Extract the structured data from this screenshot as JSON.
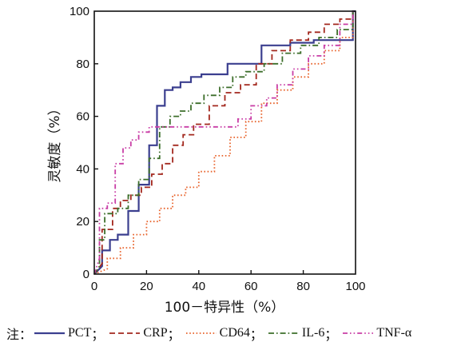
{
  "chart_data": {
    "type": "line",
    "xlabel": "100－特异性（%）",
    "ylabel": "灵敏度（%）",
    "xlim": [
      0,
      100
    ],
    "ylim": [
      0,
      100
    ],
    "x_ticks": [
      "0",
      "20",
      "40",
      "60",
      "80",
      "100"
    ],
    "y_ticks": [
      "0",
      "20",
      "40",
      "60",
      "80",
      "100"
    ],
    "grid": false,
    "legend_position": "bottom",
    "legend_prefix": "注：",
    "legend_separator": "；",
    "series": [
      {
        "name": "PCT",
        "color": "#3b3f8f",
        "style": "solid",
        "x": [
          0,
          3,
          3,
          6,
          6,
          9,
          9,
          13,
          13,
          17,
          17,
          21,
          21,
          24,
          24,
          27,
          27,
          30,
          30,
          33,
          33,
          37,
          37,
          41,
          41,
          45,
          45,
          51,
          51,
          56,
          56,
          64,
          64,
          75,
          75,
          84,
          84,
          95,
          95,
          99,
          99,
          100
        ],
        "y": [
          0,
          3,
          9,
          9,
          13,
          13,
          15,
          15,
          24,
          24,
          34,
          34,
          49,
          49,
          64,
          64,
          70,
          70,
          71,
          71,
          73,
          73,
          75,
          75,
          76,
          76,
          76,
          76,
          80,
          80,
          80,
          80,
          87,
          87,
          88,
          88,
          89,
          89,
          89,
          89,
          100,
          100
        ]
      },
      {
        "name": "CRP",
        "color": "#a3281e",
        "style": "dashed",
        "x": [
          0,
          3,
          3,
          7,
          7,
          10,
          10,
          14,
          14,
          18,
          18,
          22,
          22,
          26,
          26,
          30,
          30,
          34,
          34,
          38,
          38,
          44,
          44,
          50,
          50,
          56,
          56,
          62,
          62,
          68,
          68,
          75,
          75,
          82,
          82,
          88,
          88,
          94,
          94,
          99,
          99,
          100
        ],
        "y": [
          0,
          4,
          17,
          17,
          25,
          25,
          28,
          28,
          30,
          30,
          33,
          33,
          38,
          38,
          42,
          42,
          49,
          49,
          53,
          53,
          57,
          57,
          64,
          64,
          69,
          69,
          72,
          72,
          80,
          80,
          85,
          85,
          89,
          89,
          92,
          92,
          95,
          95,
          97,
          97,
          100,
          100
        ]
      },
      {
        "name": "CD64",
        "color": "#e8622a",
        "style": "dotted",
        "x": [
          0,
          5,
          5,
          10,
          10,
          15,
          15,
          20,
          20,
          25,
          25,
          30,
          30,
          35,
          35,
          40,
          40,
          46,
          46,
          52,
          52,
          58,
          58,
          64,
          64,
          70,
          70,
          76,
          76,
          82,
          82,
          88,
          88,
          94,
          94,
          99,
          99,
          100
        ],
        "y": [
          0,
          2,
          6,
          6,
          10,
          10,
          15,
          15,
          20,
          20,
          25,
          25,
          30,
          30,
          33,
          33,
          39,
          39,
          45,
          45,
          52,
          52,
          58,
          58,
          65,
          65,
          70,
          70,
          75,
          75,
          80,
          80,
          85,
          85,
          90,
          90,
          100,
          100
        ]
      },
      {
        "name": "IL-6",
        "color": "#3c6e2a",
        "style": "dashdot",
        "x": [
          0,
          2,
          2,
          4,
          4,
          9,
          9,
          13,
          13,
          17,
          17,
          21,
          21,
          25,
          25,
          29,
          29,
          33,
          33,
          37,
          37,
          42,
          42,
          48,
          48,
          53,
          53,
          58,
          58,
          65,
          65,
          72,
          72,
          79,
          79,
          86,
          86,
          93,
          93,
          99,
          99,
          100
        ],
        "y": [
          0,
          3,
          13,
          13,
          23,
          23,
          25,
          25,
          30,
          30,
          36,
          36,
          44,
          44,
          56,
          56,
          60,
          60,
          62,
          62,
          65,
          65,
          68,
          68,
          71,
          71,
          75,
          75,
          77,
          77,
          80,
          80,
          84,
          84,
          87,
          87,
          90,
          90,
          93,
          93,
          100,
          100
        ]
      },
      {
        "name": "TNF-α",
        "color": "#c93ea6",
        "style": "dashdotdot",
        "x": [
          0,
          2,
          2,
          5,
          5,
          8,
          8,
          11,
          11,
          14,
          14,
          17,
          17,
          21,
          21,
          28,
          28,
          55,
          55,
          60,
          60,
          66,
          66,
          70,
          70,
          76,
          76,
          82,
          82,
          88,
          88,
          94,
          94,
          99,
          99,
          100
        ],
        "y": [
          0,
          6,
          25,
          25,
          27,
          27,
          42,
          42,
          48,
          48,
          51,
          51,
          54,
          54,
          56,
          56,
          56,
          56,
          59,
          59,
          64,
          64,
          67,
          67,
          72,
          72,
          78,
          78,
          83,
          83,
          87,
          87,
          95,
          95,
          100,
          100
        ]
      }
    ]
  }
}
